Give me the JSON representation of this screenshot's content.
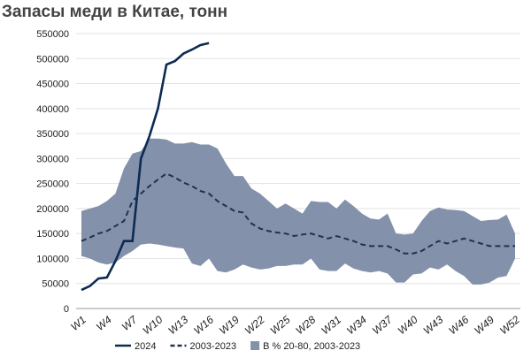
{
  "chart_data": {
    "type": "line",
    "title": "Запасы меди в Китае, тонн",
    "categories": [
      "W1",
      null,
      null,
      "W4",
      null,
      null,
      "W7",
      null,
      null,
      "W10",
      null,
      null,
      "W13",
      null,
      null,
      "W16",
      null,
      null,
      "W19",
      null,
      null,
      "W22",
      null,
      null,
      "W25",
      null,
      null,
      "W28",
      null,
      null,
      "W31",
      null,
      null,
      "W34",
      null,
      null,
      "W37",
      null,
      null,
      "W40",
      null,
      null,
      "W43",
      null,
      null,
      "W46",
      null,
      null,
      "W49",
      null,
      null,
      "W52"
    ],
    "series": [
      {
        "name": "2024",
        "color": "#0d2a52",
        "style": "solid",
        "values": [
          37000,
          45000,
          60000,
          62000,
          95000,
          135000,
          135000,
          300000,
          345000,
          400000,
          488000,
          495000,
          510000,
          518000,
          527000,
          531000,
          null,
          null,
          null,
          null,
          null,
          null,
          null,
          null,
          null,
          null,
          null,
          null,
          null,
          null,
          null,
          null,
          null,
          null,
          null,
          null,
          null,
          null,
          null,
          null,
          null,
          null,
          null,
          null,
          null,
          null,
          null,
          null,
          null,
          null,
          null,
          null
        ]
      },
      {
        "name": "2003-2023",
        "color": "#1e3350",
        "style": "dashed",
        "values": [
          135000,
          142000,
          150000,
          155000,
          165000,
          175000,
          215000,
          230000,
          245000,
          258000,
          270000,
          262000,
          252000,
          245000,
          235000,
          230000,
          215000,
          205000,
          195000,
          192000,
          170000,
          160000,
          155000,
          152000,
          150000,
          145000,
          148000,
          150000,
          145000,
          140000,
          145000,
          140000,
          135000,
          128000,
          125000,
          125000,
          125000,
          118000,
          110000,
          110000,
          115000,
          125000,
          135000,
          130000,
          135000,
          140000,
          135000,
          130000,
          125000,
          125000,
          125000,
          125000
        ]
      }
    ],
    "band": {
      "name": "В % 20-80, 2003-2023",
      "color": "#8391ab",
      "lower": [
        105000,
        100000,
        92000,
        88000,
        92000,
        105000,
        115000,
        128000,
        130000,
        128000,
        125000,
        122000,
        120000,
        90000,
        85000,
        100000,
        75000,
        72000,
        78000,
        88000,
        82000,
        78000,
        80000,
        85000,
        85000,
        88000,
        88000,
        100000,
        78000,
        75000,
        75000,
        90000,
        80000,
        75000,
        72000,
        75000,
        70000,
        52000,
        52000,
        68000,
        70000,
        82000,
        78000,
        88000,
        75000,
        65000,
        48000,
        48000,
        52000,
        62000,
        65000,
        100000
      ],
      "upper": [
        195000,
        200000,
        205000,
        215000,
        230000,
        280000,
        310000,
        315000,
        340000,
        340000,
        338000,
        330000,
        330000,
        333000,
        328000,
        328000,
        320000,
        290000,
        265000,
        265000,
        240000,
        230000,
        215000,
        200000,
        210000,
        200000,
        190000,
        215000,
        213000,
        213000,
        200000,
        218000,
        205000,
        190000,
        180000,
        178000,
        190000,
        150000,
        148000,
        150000,
        175000,
        195000,
        202000,
        198000,
        197000,
        195000,
        185000,
        175000,
        177000,
        178000,
        188000,
        150000
      ]
    },
    "ylim": [
      0,
      550000
    ],
    "yticks": [
      0,
      50000,
      100000,
      150000,
      200000,
      250000,
      300000,
      350000,
      400000,
      450000,
      500000,
      550000
    ],
    "grid": true
  }
}
